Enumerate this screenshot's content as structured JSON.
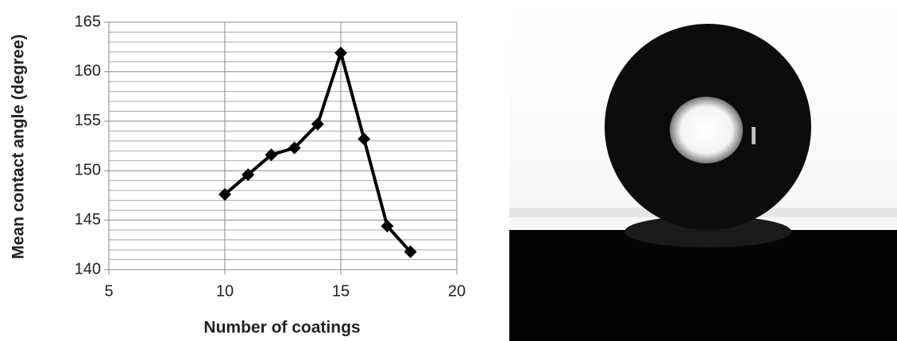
{
  "chart_data": {
    "type": "line",
    "x_label": "Number of coatings",
    "y_label": "Mean contact angle (degree)",
    "x": [
      10,
      11,
      12,
      13,
      14,
      15,
      16,
      17,
      18
    ],
    "values": [
      147.6,
      149.6,
      151.6,
      152.3,
      154.7,
      161.9,
      153.2,
      144.4,
      141.8
    ],
    "color": "#000000",
    "xlim": [
      5,
      20
    ],
    "xticks": [
      5,
      10,
      15,
      20
    ],
    "ylim": [
      140,
      165
    ],
    "yticks": [
      140,
      145,
      150,
      155,
      160,
      165
    ],
    "y_minor_gridlines": [
      141,
      142,
      143,
      144,
      146,
      147,
      148,
      149,
      151,
      152,
      153,
      154,
      156,
      157,
      158,
      159,
      161,
      162,
      163,
      164
    ],
    "grid": true
  }
}
